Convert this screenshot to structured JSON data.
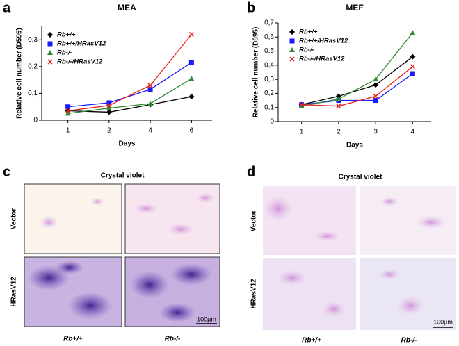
{
  "chart_data": [
    {
      "type": "line",
      "panel": "a",
      "title": "MEA",
      "x_label": "Days",
      "y_label": "Relative cell number (D595)",
      "categories": [
        "1",
        "2",
        "4",
        "6"
      ],
      "ylim": [
        0,
        0.35
      ],
      "yticks": [
        0,
        {
          "value": 0.1,
          "label": "0,1"
        },
        {
          "value": 0.2,
          "label": "0,2"
        },
        {
          "value": 0.3,
          "label": "0,3"
        }
      ],
      "series": [
        {
          "name": "Rb+/+",
          "color": "#000000",
          "marker": "diamond",
          "values": [
            0.035,
            0.03,
            0.058,
            0.088
          ]
        },
        {
          "name": "Rb+/+/HRasV12",
          "color": "#1a1aff",
          "marker": "square",
          "values": [
            0.05,
            0.065,
            0.115,
            0.215
          ]
        },
        {
          "name": "Rb-/-",
          "color": "#2e8b2e",
          "marker": "triangle",
          "values": [
            0.025,
            0.045,
            0.062,
            0.155
          ]
        },
        {
          "name": "Rb-/-/HRasV12",
          "color": "#e8211a",
          "marker": "x",
          "values": [
            0.035,
            0.055,
            0.13,
            0.32
          ]
        }
      ]
    },
    {
      "type": "line",
      "panel": "b",
      "title": "MEF",
      "x_label": "Days",
      "y_label": "Relative cell number (D595)",
      "categories": [
        "1",
        "2",
        "3",
        "4"
      ],
      "ylim": [
        0,
        0.7
      ],
      "yticks": [
        0,
        {
          "value": 0.1,
          "label": "0,1"
        },
        {
          "value": 0.2,
          "label": "0,2"
        },
        {
          "value": 0.3,
          "label": "0,3"
        },
        {
          "value": 0.4,
          "label": "0,4"
        },
        {
          "value": 0.5,
          "label": "0,5"
        },
        {
          "value": 0.6,
          "label": "0,6"
        },
        {
          "value": 0.7,
          "label": "0,7"
        }
      ],
      "series": [
        {
          "name": "Rb+/+",
          "color": "#000000",
          "marker": "diamond",
          "values": [
            0.12,
            0.18,
            0.26,
            0.46
          ]
        },
        {
          "name": "Rb+/+/HRasV12",
          "color": "#1a1aff",
          "marker": "square",
          "values": [
            0.12,
            0.15,
            0.15,
            0.34
          ]
        },
        {
          "name": "Rb-/-",
          "color": "#2e8b2e",
          "marker": "triangle",
          "values": [
            0.11,
            0.16,
            0.3,
            0.63
          ]
        },
        {
          "name": "Rb-/-/HRasV12",
          "color": "#e8211a",
          "marker": "x",
          "values": [
            0.12,
            0.11,
            0.18,
            0.39
          ]
        }
      ]
    }
  ],
  "panels": {
    "c": {
      "letter": "c",
      "title": "Crystal violet",
      "rows": [
        "Vector",
        "HRasV12"
      ],
      "columns": [
        "Rb+/+",
        "Rb-/-"
      ],
      "scale_bar": "100µm"
    },
    "d": {
      "letter": "d",
      "title": "Crystal violet",
      "rows": [
        "Vector",
        "HRasV12"
      ],
      "columns": [
        "Rb+/+",
        "Rb-/-"
      ],
      "scale_bar": "100µm"
    }
  }
}
